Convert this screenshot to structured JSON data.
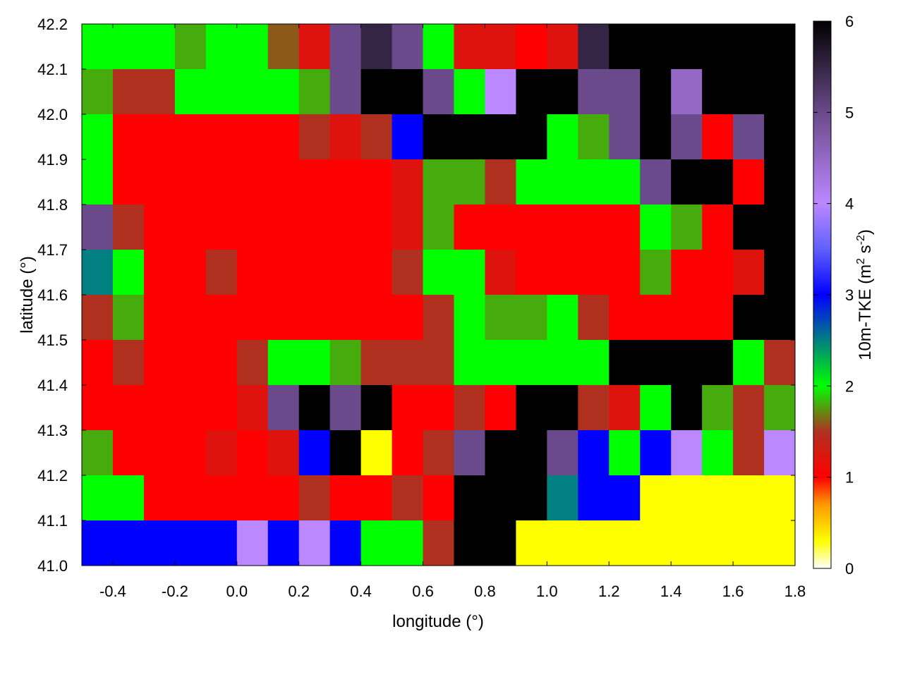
{
  "chart_data": {
    "type": "heatmap",
    "xlabel": "longitude (°)",
    "ylabel": "latitude (°)",
    "xlim": [
      -0.5,
      1.8
    ],
    "ylim": [
      41.0,
      42.2
    ],
    "xticks": [
      "-0.4",
      "-0.2",
      "0.0",
      "0.2",
      "0.4",
      "0.6",
      "0.8",
      "1.0",
      "1.2",
      "1.4",
      "1.6",
      "1.8"
    ],
    "xtick_values": [
      -0.4,
      -0.2,
      0.0,
      0.2,
      0.4,
      0.6,
      0.8,
      1.0,
      1.2,
      1.4,
      1.6,
      1.8
    ],
    "yticks": [
      "41.0",
      "41.1",
      "41.2",
      "41.3",
      "41.4",
      "41.5",
      "41.6",
      "41.7",
      "41.8",
      "41.9",
      "42.0",
      "42.1",
      "42.2"
    ],
    "ytick_values": [
      41.0,
      41.1,
      41.2,
      41.3,
      41.4,
      41.5,
      41.6,
      41.7,
      41.8,
      41.9,
      42.0,
      42.1,
      42.2
    ],
    "colorbar": {
      "label_main": "10m-TKE (m",
      "label_sup1": "2",
      "label_mid": " s",
      "label_sup2": "-2",
      "label_end": ")",
      "range": [
        0,
        6
      ],
      "ticks": [
        "0",
        "1",
        "2",
        "3",
        "4",
        "5",
        "6"
      ],
      "tick_values": [
        0,
        1,
        2,
        3,
        4,
        5,
        6
      ],
      "colormap": [
        [
          0,
          "#ffffff"
        ],
        [
          0.3,
          "#ffff00"
        ],
        [
          0.7,
          "#ff9900"
        ],
        [
          1,
          "#ff0000"
        ],
        [
          1.5,
          "#b03020"
        ],
        [
          2,
          "#00ff00"
        ],
        [
          2.5,
          "#008080"
        ],
        [
          3,
          "#0000ff"
        ],
        [
          3.5,
          "#6060ff"
        ],
        [
          4,
          "#bb88ff"
        ],
        [
          5,
          "#6a4a8a"
        ],
        [
          6,
          "#000000"
        ]
      ]
    },
    "grid_resolution_deg": 0.1,
    "rows_top_to_bottom": [
      [
        2,
        2,
        2,
        1.8,
        2,
        2,
        1.6,
        1.2,
        5,
        5.5,
        5,
        2,
        1.2,
        1.2,
        1,
        1.2,
        5.5,
        6,
        6,
        6,
        6,
        6,
        6
      ],
      [
        1.8,
        1.5,
        1.5,
        2,
        2,
        2,
        2,
        1.8,
        5,
        6,
        6,
        5,
        2,
        4,
        6,
        6,
        5,
        5,
        6,
        4.5,
        6,
        6,
        6
      ],
      [
        2,
        1,
        1,
        1,
        1,
        1,
        1,
        1.5,
        1.2,
        1.5,
        3,
        6,
        6,
        6,
        6,
        2,
        1.8,
        5,
        6,
        5,
        1,
        5,
        6
      ],
      [
        2,
        1,
        1,
        1,
        1,
        1,
        1,
        1,
        1,
        1,
        1.2,
        1.8,
        1.8,
        1.5,
        2,
        2,
        2,
        2,
        5,
        6,
        6,
        1,
        6
      ],
      [
        5,
        1.5,
        1,
        1,
        1,
        1,
        1,
        1,
        1,
        1,
        1.2,
        1.8,
        1,
        1,
        1,
        1,
        1,
        1,
        2,
        1.8,
        1,
        6,
        6
      ],
      [
        2.5,
        2,
        1,
        1,
        1.5,
        1,
        1,
        1,
        1,
        1,
        1.5,
        2,
        2,
        1.2,
        1,
        1,
        1,
        1,
        1.8,
        1,
        1,
        1.2,
        6
      ],
      [
        1.5,
        1.8,
        1,
        1,
        1,
        1,
        1,
        1,
        1,
        1,
        1,
        1.5,
        2,
        1.8,
        1.8,
        2,
        1.5,
        1,
        1,
        1,
        1,
        6,
        6
      ],
      [
        1,
        1.5,
        1,
        1,
        1,
        1.5,
        2,
        2,
        1.8,
        1.5,
        1.5,
        1.5,
        2,
        2,
        2,
        2,
        2,
        6,
        6,
        6,
        6,
        2,
        1.5
      ],
      [
        1,
        1,
        1,
        1,
        1,
        1.2,
        5,
        6,
        5,
        6,
        1,
        1,
        1.5,
        1,
        6,
        6,
        1.5,
        1.2,
        2,
        6,
        1.8,
        1.5,
        1.8
      ],
      [
        1.8,
        1,
        1,
        1,
        1.2,
        1,
        1.2,
        3,
        6,
        0.3,
        1,
        1.5,
        5,
        6,
        6,
        5,
        3,
        2,
        3,
        4,
        2,
        1.5,
        4
      ],
      [
        2,
        2,
        1,
        1,
        1,
        1,
        1,
        1.5,
        1,
        1,
        1.5,
        1,
        6,
        6,
        6,
        2.5,
        3,
        3,
        0.3,
        0.3,
        0.3,
        0.3,
        0.3
      ],
      [
        3,
        3,
        3,
        3,
        3,
        4,
        3,
        4,
        3,
        2,
        2,
        1.5,
        6,
        6,
        0.3,
        0.3,
        0.3,
        0.3,
        0.3,
        0.3,
        0.3,
        0.3,
        0.3
      ]
    ]
  }
}
